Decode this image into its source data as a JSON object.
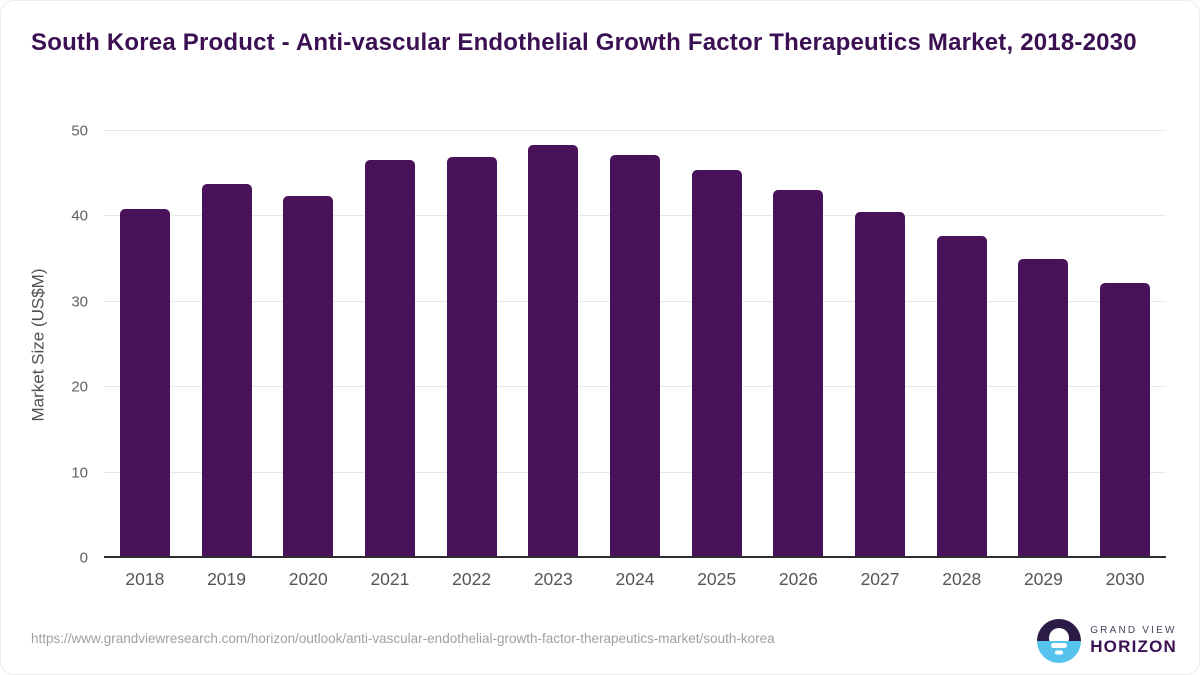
{
  "page": {
    "title": "South Korea Product - Anti-vascular Endothelial Growth Factor Therapeutics Market, 2018-2030"
  },
  "chart_data": {
    "type": "bar",
    "title": "South Korea Product - Anti-vascular Endothelial Growth Factor Therapeutics Market, 2018-2030",
    "categories": [
      "2018",
      "2019",
      "2020",
      "2021",
      "2022",
      "2023",
      "2024",
      "2025",
      "2026",
      "2027",
      "2028",
      "2029",
      "2030"
    ],
    "values": [
      40.8,
      43.8,
      42.4,
      46.6,
      47.0,
      48.4,
      47.2,
      45.4,
      43.1,
      40.5,
      37.7,
      35.0,
      32.1
    ],
    "xlabel": "",
    "ylabel": "Market Size (US$M)",
    "ylim": [
      0,
      50
    ],
    "y_ticks": [
      0,
      10,
      20,
      30,
      40,
      50
    ],
    "grid": "horizontal",
    "legend": "none",
    "bar_color": "#491159"
  },
  "footer": {
    "source_url": "https://www.grandviewresearch.com/horizon/outlook/anti-vascular-endothelial-growth-factor-therapeutics-market/south-korea",
    "logo": {
      "line1": "GRAND VIEW",
      "line2": "HORIZON",
      "icon": "sunrise-horizon-icon",
      "icon_top_color": "#2b1b47",
      "icon_bottom_color": "#56c3ec"
    }
  },
  "colors": {
    "title_text": "#3b1053",
    "bar": "#491159",
    "axis_text": "#555555",
    "gridline": "#e8e8e8",
    "axis_line": "#2f2f2f",
    "source_text": "#a0a0a0",
    "card_border": "#ececec"
  }
}
